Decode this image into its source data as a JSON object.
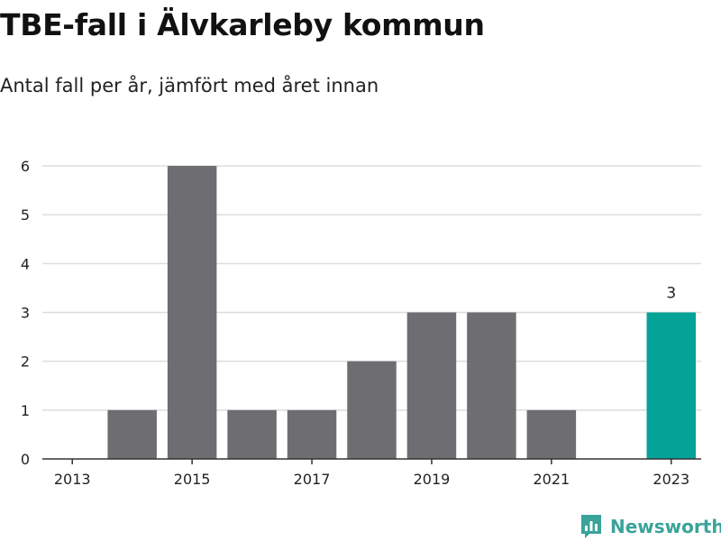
{
  "header": {
    "title": "TBE-fall i Älvkarleby kommun",
    "subtitle": "Antal fall per år, jämfört med året innan"
  },
  "brand": {
    "name": "Newsworthy",
    "logo_icon": "bar-chart-speech-bubble-icon",
    "color": "#3aa39a"
  },
  "chart_data": {
    "type": "bar",
    "categories": [
      "2013",
      "2014",
      "2015",
      "2016",
      "2017",
      "2018",
      "2019",
      "2020",
      "2021",
      "2022",
      "2023"
    ],
    "values": [
      0,
      1,
      6,
      1,
      1,
      2,
      3,
      3,
      1,
      0,
      3
    ],
    "x_tick_labels": [
      "2013",
      "2015",
      "2017",
      "2019",
      "2021",
      "2023"
    ],
    "y_ticks": [
      0,
      1,
      2,
      3,
      4,
      5,
      6
    ],
    "ylim": [
      0,
      6
    ],
    "grid": true,
    "highlight": {
      "category": "2023",
      "label": "3"
    },
    "colors": {
      "default": "#6d6d72",
      "highlight": "#05a397",
      "grid": "#dddddd",
      "axis": "#333333"
    }
  }
}
